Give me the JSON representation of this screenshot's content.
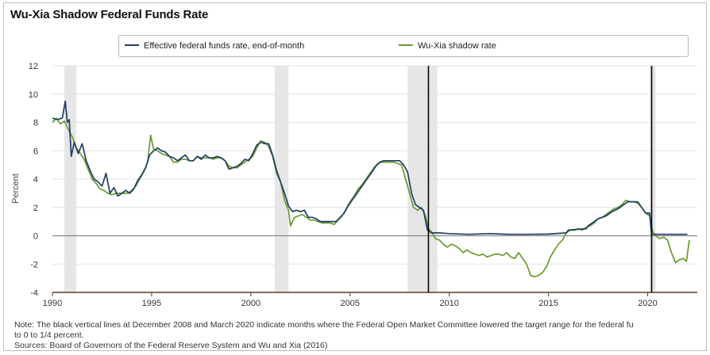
{
  "colors": {
    "fed_funds": "#1f3f66",
    "shadow": "#6b9a2e",
    "recession": "#e6e6e6",
    "zero_line": "#888888",
    "event_line": "#000000"
  },
  "chart_data": {
    "type": "line",
    "title": "Wu-Xia Shadow Federal Funds Rate",
    "xlabel": "",
    "ylabel": "Percent",
    "xlim": [
      1990.0,
      2022.5
    ],
    "ylim": [
      -4,
      12
    ],
    "xticks": [
      1990,
      1995,
      2000,
      2005,
      2010,
      2015,
      2020
    ],
    "yticks": [
      -4,
      -2,
      0,
      2,
      4,
      6,
      8,
      10,
      12
    ],
    "grid": true,
    "legend_position": "top",
    "recessions": [
      [
        1990.6,
        1991.2
      ],
      [
        2001.2,
        2001.9
      ],
      [
        2007.9,
        2009.4
      ],
      [
        2020.1,
        2020.4
      ]
    ],
    "event_lines": [
      2008.95,
      2020.2
    ],
    "series": [
      {
        "name": "Effective federal funds rate, end-of-month",
        "points": [
          [
            1990.0,
            8.3
          ],
          [
            1990.25,
            8.2
          ],
          [
            1990.5,
            8.3
          ],
          [
            1990.65,
            9.5
          ],
          [
            1990.75,
            8.0
          ],
          [
            1990.85,
            8.2
          ],
          [
            1990.95,
            5.6
          ],
          [
            1991.1,
            6.6
          ],
          [
            1991.3,
            5.8
          ],
          [
            1991.5,
            6.5
          ],
          [
            1991.7,
            5.3
          ],
          [
            1991.9,
            4.6
          ],
          [
            1992.1,
            4.0
          ],
          [
            1992.3,
            3.8
          ],
          [
            1992.5,
            3.5
          ],
          [
            1992.7,
            4.4
          ],
          [
            1992.9,
            3.0
          ],
          [
            1993.1,
            3.4
          ],
          [
            1993.3,
            2.8
          ],
          [
            1993.5,
            3.0
          ],
          [
            1993.7,
            3.2
          ],
          [
            1993.9,
            3.0
          ],
          [
            1994.1,
            3.3
          ],
          [
            1994.3,
            3.9
          ],
          [
            1994.5,
            4.3
          ],
          [
            1994.7,
            4.8
          ],
          [
            1994.9,
            5.7
          ],
          [
            1995.1,
            6.0
          ],
          [
            1995.3,
            6.2
          ],
          [
            1995.5,
            6.0
          ],
          [
            1995.7,
            5.9
          ],
          [
            1995.9,
            5.6
          ],
          [
            1996.1,
            5.5
          ],
          [
            1996.3,
            5.3
          ],
          [
            1996.5,
            5.5
          ],
          [
            1996.7,
            5.7
          ],
          [
            1996.9,
            5.3
          ],
          [
            1997.1,
            5.3
          ],
          [
            1997.3,
            5.6
          ],
          [
            1997.5,
            5.4
          ],
          [
            1997.7,
            5.7
          ],
          [
            1997.9,
            5.5
          ],
          [
            1998.1,
            5.5
          ],
          [
            1998.3,
            5.6
          ],
          [
            1998.5,
            5.5
          ],
          [
            1998.7,
            5.3
          ],
          [
            1998.9,
            4.7
          ],
          [
            1999.1,
            4.8
          ],
          [
            1999.3,
            4.9
          ],
          [
            1999.5,
            5.1
          ],
          [
            1999.7,
            5.4
          ],
          [
            1999.9,
            5.3
          ],
          [
            2000.1,
            5.8
          ],
          [
            2000.3,
            6.4
          ],
          [
            2000.5,
            6.6
          ],
          [
            2000.7,
            6.5
          ],
          [
            2000.9,
            6.5
          ],
          [
            2001.1,
            5.7
          ],
          [
            2001.3,
            4.6
          ],
          [
            2001.5,
            3.8
          ],
          [
            2001.7,
            3.0
          ],
          [
            2001.9,
            2.1
          ],
          [
            2002.1,
            1.7
          ],
          [
            2002.3,
            1.8
          ],
          [
            2002.5,
            1.7
          ],
          [
            2002.7,
            1.8
          ],
          [
            2002.9,
            1.3
          ],
          [
            2003.1,
            1.3
          ],
          [
            2003.3,
            1.2
          ],
          [
            2003.5,
            1.0
          ],
          [
            2003.7,
            1.0
          ],
          [
            2003.9,
            1.0
          ],
          [
            2004.1,
            1.0
          ],
          [
            2004.3,
            1.0
          ],
          [
            2004.5,
            1.3
          ],
          [
            2004.7,
            1.6
          ],
          [
            2004.9,
            2.1
          ],
          [
            2005.1,
            2.5
          ],
          [
            2005.3,
            2.9
          ],
          [
            2005.5,
            3.3
          ],
          [
            2005.7,
            3.7
          ],
          [
            2005.9,
            4.1
          ],
          [
            2006.1,
            4.5
          ],
          [
            2006.3,
            4.9
          ],
          [
            2006.5,
            5.2
          ],
          [
            2006.7,
            5.3
          ],
          [
            2006.9,
            5.3
          ],
          [
            2007.1,
            5.3
          ],
          [
            2007.3,
            5.3
          ],
          [
            2007.5,
            5.3
          ],
          [
            2007.7,
            5.0
          ],
          [
            2007.9,
            4.5
          ],
          [
            2008.1,
            3.0
          ],
          [
            2008.3,
            2.2
          ],
          [
            2008.5,
            2.0
          ],
          [
            2008.7,
            1.8
          ],
          [
            2008.9,
            0.4
          ],
          [
            2009.1,
            0.2
          ],
          [
            2009.5,
            0.2
          ],
          [
            2010.0,
            0.15
          ],
          [
            2011.0,
            0.1
          ],
          [
            2012.0,
            0.15
          ],
          [
            2013.0,
            0.1
          ],
          [
            2014.0,
            0.1
          ],
          [
            2015.0,
            0.12
          ],
          [
            2015.9,
            0.2
          ],
          [
            2016.0,
            0.4
          ],
          [
            2016.9,
            0.5
          ],
          [
            2017.0,
            0.7
          ],
          [
            2017.2,
            0.9
          ],
          [
            2017.5,
            1.2
          ],
          [
            2017.9,
            1.4
          ],
          [
            2018.2,
            1.7
          ],
          [
            2018.5,
            1.9
          ],
          [
            2018.8,
            2.2
          ],
          [
            2019.0,
            2.4
          ],
          [
            2019.5,
            2.4
          ],
          [
            2019.7,
            2.0
          ],
          [
            2019.9,
            1.6
          ],
          [
            2020.1,
            1.6
          ],
          [
            2020.2,
            0.1
          ],
          [
            2020.5,
            0.1
          ],
          [
            2021.0,
            0.1
          ],
          [
            2021.5,
            0.1
          ],
          [
            2022.0,
            0.1
          ]
        ]
      },
      {
        "name": "Wu-Xia shadow rate",
        "points": [
          [
            1990.0,
            8.0
          ],
          [
            1990.2,
            8.3
          ],
          [
            1990.4,
            7.9
          ],
          [
            1990.6,
            8.1
          ],
          [
            1990.8,
            7.5
          ],
          [
            1991.0,
            7.0
          ],
          [
            1991.2,
            6.2
          ],
          [
            1991.4,
            5.8
          ],
          [
            1991.6,
            5.4
          ],
          [
            1991.8,
            4.7
          ],
          [
            1992.0,
            4.0
          ],
          [
            1992.2,
            3.7
          ],
          [
            1992.4,
            3.3
          ],
          [
            1992.6,
            3.2
          ],
          [
            1992.8,
            3.0
          ],
          [
            1993.0,
            2.9
          ],
          [
            1993.2,
            3.0
          ],
          [
            1993.4,
            3.0
          ],
          [
            1993.6,
            3.0
          ],
          [
            1993.8,
            3.0
          ],
          [
            1994.0,
            3.2
          ],
          [
            1994.2,
            3.5
          ],
          [
            1994.4,
            4.0
          ],
          [
            1994.6,
            4.5
          ],
          [
            1994.8,
            5.2
          ],
          [
            1994.95,
            7.1
          ],
          [
            1995.1,
            6.1
          ],
          [
            1995.3,
            6.0
          ],
          [
            1995.5,
            5.8
          ],
          [
            1995.7,
            5.7
          ],
          [
            1995.9,
            5.6
          ],
          [
            1996.1,
            5.2
          ],
          [
            1996.3,
            5.2
          ],
          [
            1996.5,
            5.4
          ],
          [
            1996.7,
            5.4
          ],
          [
            1996.9,
            5.3
          ],
          [
            1997.1,
            5.3
          ],
          [
            1997.3,
            5.6
          ],
          [
            1997.5,
            5.5
          ],
          [
            1997.7,
            5.5
          ],
          [
            1997.9,
            5.5
          ],
          [
            1998.1,
            5.4
          ],
          [
            1998.3,
            5.5
          ],
          [
            1998.5,
            5.5
          ],
          [
            1998.7,
            5.3
          ],
          [
            1998.9,
            4.9
          ],
          [
            1999.1,
            4.8
          ],
          [
            1999.3,
            4.8
          ],
          [
            1999.5,
            5.0
          ],
          [
            1999.7,
            5.2
          ],
          [
            1999.9,
            5.4
          ],
          [
            2000.1,
            5.6
          ],
          [
            2000.3,
            6.2
          ],
          [
            2000.5,
            6.7
          ],
          [
            2000.7,
            6.6
          ],
          [
            2000.9,
            6.3
          ],
          [
            2001.1,
            5.6
          ],
          [
            2001.3,
            4.4
          ],
          [
            2001.5,
            3.8
          ],
          [
            2001.7,
            2.5
          ],
          [
            2001.9,
            1.8
          ],
          [
            2002.0,
            0.7
          ],
          [
            2002.2,
            1.3
          ],
          [
            2002.4,
            1.4
          ],
          [
            2002.6,
            1.5
          ],
          [
            2002.8,
            1.3
          ],
          [
            2003.0,
            1.1
          ],
          [
            2003.2,
            1.1
          ],
          [
            2003.4,
            1.0
          ],
          [
            2003.6,
            0.9
          ],
          [
            2003.8,
            0.9
          ],
          [
            2004.0,
            0.9
          ],
          [
            2004.2,
            0.8
          ],
          [
            2004.4,
            1.1
          ],
          [
            2004.6,
            1.4
          ],
          [
            2004.8,
            1.9
          ],
          [
            2005.0,
            2.4
          ],
          [
            2005.2,
            2.8
          ],
          [
            2005.4,
            3.3
          ],
          [
            2005.6,
            3.6
          ],
          [
            2005.8,
            4.0
          ],
          [
            2006.0,
            4.4
          ],
          [
            2006.2,
            4.8
          ],
          [
            2006.4,
            5.1
          ],
          [
            2006.6,
            5.2
          ],
          [
            2006.8,
            5.2
          ],
          [
            2007.0,
            5.2
          ],
          [
            2007.2,
            5.2
          ],
          [
            2007.4,
            5.1
          ],
          [
            2007.6,
            5.0
          ],
          [
            2007.8,
            4.0
          ],
          [
            2008.0,
            3.0
          ],
          [
            2008.2,
            2.0
          ],
          [
            2008.4,
            1.8
          ],
          [
            2008.6,
            2.0
          ],
          [
            2008.8,
            1.4
          ],
          [
            2008.95,
            0.5
          ],
          [
            2009.1,
            0.3
          ],
          [
            2009.3,
            -0.2
          ],
          [
            2009.5,
            -0.3
          ],
          [
            2009.7,
            -0.6
          ],
          [
            2009.9,
            -0.8
          ],
          [
            2010.1,
            -0.6
          ],
          [
            2010.3,
            -0.7
          ],
          [
            2010.5,
            -0.9
          ],
          [
            2010.7,
            -1.2
          ],
          [
            2010.9,
            -1.0
          ],
          [
            2011.1,
            -1.2
          ],
          [
            2011.3,
            -1.3
          ],
          [
            2011.5,
            -1.4
          ],
          [
            2011.7,
            -1.3
          ],
          [
            2011.9,
            -1.5
          ],
          [
            2012.1,
            -1.4
          ],
          [
            2012.3,
            -1.3
          ],
          [
            2012.5,
            -1.3
          ],
          [
            2012.7,
            -1.4
          ],
          [
            2012.9,
            -1.2
          ],
          [
            2013.1,
            -1.5
          ],
          [
            2013.3,
            -1.6
          ],
          [
            2013.5,
            -1.2
          ],
          [
            2013.7,
            -1.6
          ],
          [
            2013.9,
            -2.0
          ],
          [
            2014.1,
            -2.8
          ],
          [
            2014.3,
            -2.9
          ],
          [
            2014.5,
            -2.8
          ],
          [
            2014.7,
            -2.6
          ],
          [
            2014.9,
            -2.2
          ],
          [
            2015.1,
            -1.5
          ],
          [
            2015.3,
            -1.0
          ],
          [
            2015.5,
            -0.6
          ],
          [
            2015.7,
            -0.3
          ],
          [
            2015.9,
            0.2
          ],
          [
            2016.1,
            0.4
          ],
          [
            2016.3,
            0.4
          ],
          [
            2016.5,
            0.5
          ],
          [
            2016.7,
            0.4
          ],
          [
            2016.9,
            0.6
          ],
          [
            2017.1,
            0.7
          ],
          [
            2017.3,
            0.9
          ],
          [
            2017.5,
            1.2
          ],
          [
            2017.7,
            1.3
          ],
          [
            2017.9,
            1.5
          ],
          [
            2018.1,
            1.7
          ],
          [
            2018.3,
            1.9
          ],
          [
            2018.5,
            2.0
          ],
          [
            2018.7,
            2.2
          ],
          [
            2018.9,
            2.5
          ],
          [
            2019.1,
            2.4
          ],
          [
            2019.3,
            2.4
          ],
          [
            2019.5,
            2.3
          ],
          [
            2019.7,
            2.0
          ],
          [
            2019.9,
            1.6
          ],
          [
            2020.1,
            1.4
          ],
          [
            2020.25,
            0.3
          ],
          [
            2020.4,
            0.0
          ],
          [
            2020.6,
            -0.2
          ],
          [
            2020.8,
            -0.1
          ],
          [
            2021.0,
            -0.3
          ],
          [
            2021.2,
            -1.2
          ],
          [
            2021.4,
            -1.9
          ],
          [
            2021.6,
            -1.7
          ],
          [
            2021.8,
            -1.6
          ],
          [
            2021.95,
            -1.8
          ],
          [
            2022.1,
            -0.3
          ]
        ]
      }
    ]
  },
  "notes": {
    "line1": "Note: The black vertical lines at December 2008 and March 2020 indicate months where the Federal Open Market Committee lowered the target range for the federal fu",
    "line2": "to 0 to 1/4 percent.",
    "line3": "Sources: Board of Governors of the Federal Reserve System and Wu and Xia (2016)"
  }
}
